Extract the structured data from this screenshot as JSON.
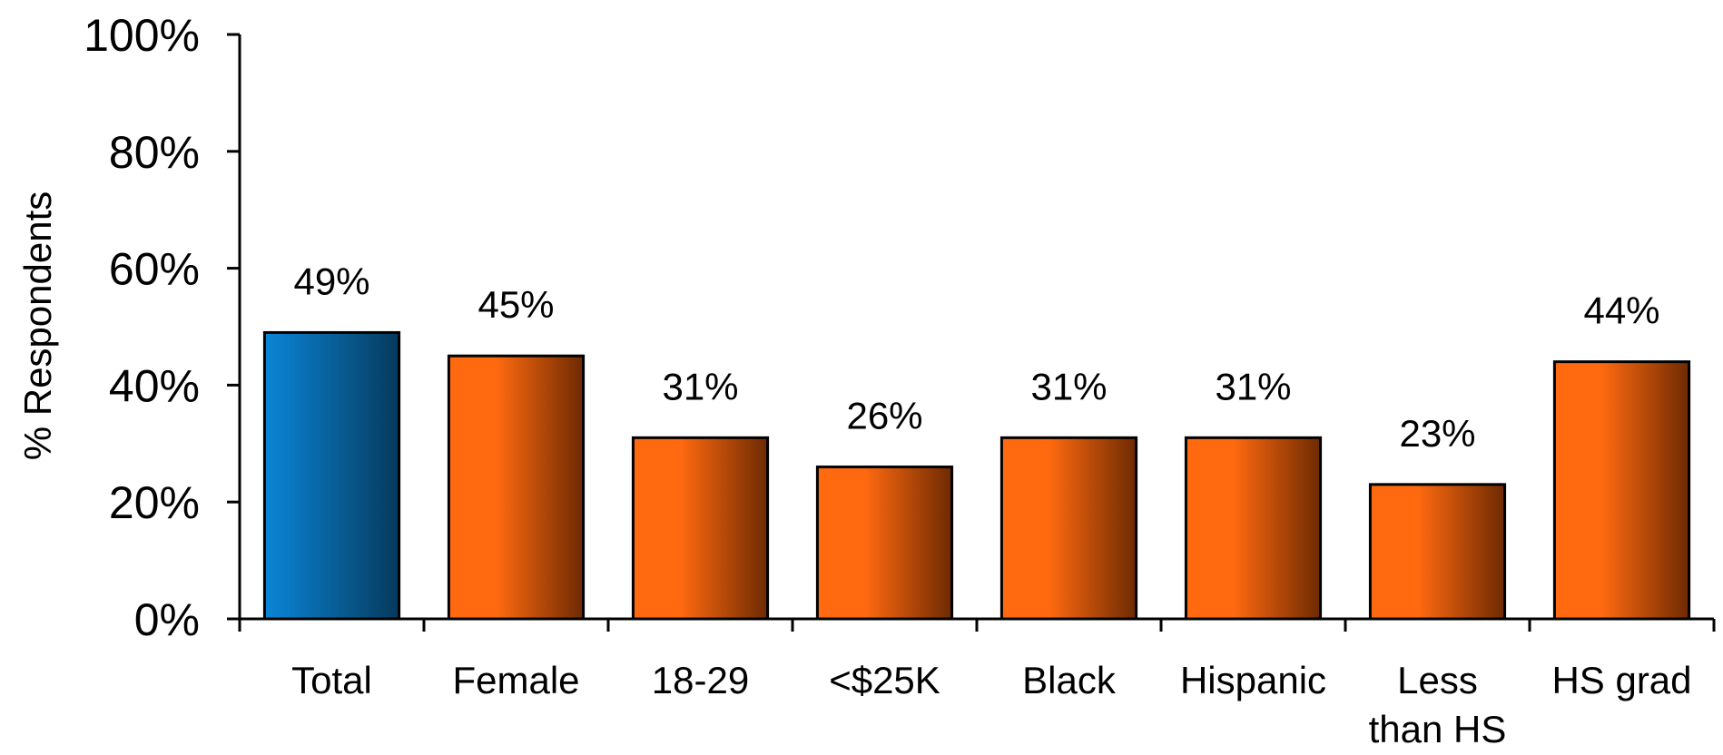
{
  "chart_data": {
    "type": "bar",
    "categories": [
      "Total",
      "Female",
      "18-29",
      "<$25K",
      "Black",
      "Hispanic",
      "Less than HS",
      "HS grad"
    ],
    "values": [
      49,
      45,
      31,
      26,
      31,
      31,
      23,
      44
    ],
    "value_labels": [
      "49%",
      "45%",
      "31%",
      "26%",
      "31%",
      "31%",
      "23%",
      "44%"
    ],
    "ylabel": "% Respondents",
    "xlabel": "",
    "ylim": [
      0,
      100
    ],
    "yticks": [
      "0%",
      "20%",
      "40%",
      "60%",
      "80%",
      "100%"
    ],
    "ytick_values": [
      0,
      20,
      40,
      60,
      80,
      100
    ],
    "grid": false,
    "legend": "none",
    "colors": {
      "highlight_light": "#0a86d8",
      "highlight_dark": "#063a5c",
      "bar_light": "#ff6a10",
      "bar_dark": "#6e2a02",
      "outline": "#000000"
    }
  }
}
